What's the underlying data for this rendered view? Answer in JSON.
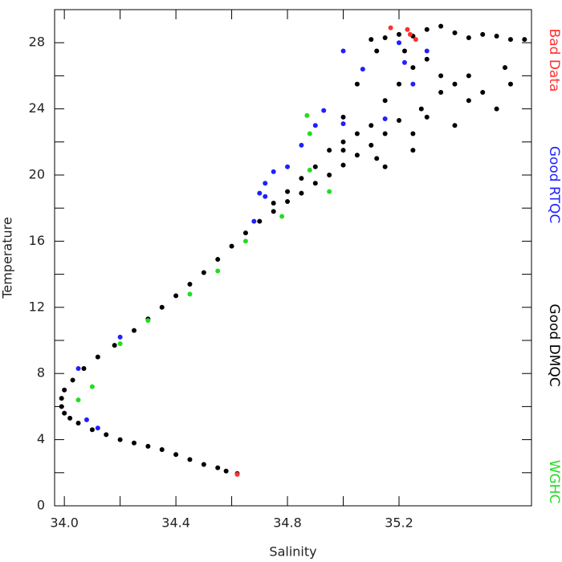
{
  "chart_data": {
    "type": "scatter",
    "x_label": "Salinity",
    "y_label": "Temperature",
    "xlim": [
      33.965,
      35.675
    ],
    "ylim": [
      0,
      30
    ],
    "xticks": [
      {
        "value": 34.0,
        "label": "34.0"
      },
      34.4,
      34.8,
      35.2
    ],
    "yticks": [
      0,
      4,
      8,
      12,
      16,
      20,
      24,
      28
    ],
    "series": [
      {
        "name": "Bad Data",
        "color": "#ff3030",
        "x": [
          35.17,
          35.23,
          35.24,
          35.26,
          34.62
        ],
        "y": [
          28.9,
          28.8,
          28.5,
          28.2,
          1.9
        ]
      },
      {
        "name": "Good RTQC",
        "color": "#2020ff",
        "x": [
          34.7,
          34.72,
          34.68,
          34.72,
          34.75,
          34.8,
          34.85,
          34.9,
          34.93,
          35.0,
          35.07,
          34.05,
          34.08,
          34.12,
          34.2,
          35.0,
          35.2,
          35.25,
          35.3,
          35.15,
          35.22
        ],
        "y": [
          18.9,
          18.7,
          17.2,
          19.5,
          20.2,
          20.5,
          21.8,
          23.0,
          23.9,
          23.1,
          26.4,
          8.3,
          5.2,
          4.7,
          10.2,
          27.5,
          28.0,
          25.5,
          27.5,
          23.4,
          26.8
        ]
      },
      {
        "name": "Good DMQC",
        "color": "#000000",
        "x": [
          34.62,
          34.58,
          34.55,
          34.5,
          34.45,
          34.4,
          34.35,
          34.3,
          34.25,
          34.2,
          34.15,
          34.1,
          34.05,
          34.02,
          34.0,
          33.99,
          33.99,
          34.0,
          34.03,
          34.07,
          34.12,
          34.18,
          34.25,
          34.3,
          34.35,
          34.4,
          34.45,
          34.5,
          34.55,
          34.6,
          34.65,
          34.7,
          34.75,
          34.8,
          34.85,
          34.9,
          34.95,
          35.0,
          35.05,
          35.1,
          35.15,
          35.2,
          34.9,
          35.0,
          35.05,
          35.1,
          35.15,
          35.2,
          35.25,
          35.3,
          35.35,
          35.4,
          35.45,
          35.5,
          35.55,
          35.1,
          35.15,
          35.2,
          35.25,
          35.3,
          35.35,
          35.4,
          35.45,
          35.5,
          35.55,
          35.6,
          35.65,
          35.0,
          35.12,
          35.25,
          35.3,
          35.4,
          35.6,
          35.58,
          35.45,
          35.35,
          35.28,
          35.22,
          35.12,
          35.05,
          35.0,
          34.95,
          34.85,
          34.8,
          34.75,
          35.15,
          35.25
        ],
        "y": [
          1.95,
          2.1,
          2.3,
          2.5,
          2.8,
          3.1,
          3.4,
          3.6,
          3.8,
          4.0,
          4.3,
          4.6,
          5.0,
          5.3,
          5.6,
          6.0,
          6.5,
          7.0,
          7.6,
          8.3,
          9.0,
          9.7,
          10.6,
          11.3,
          12.0,
          12.7,
          13.4,
          14.1,
          14.9,
          15.7,
          16.5,
          17.2,
          17.8,
          18.4,
          18.9,
          19.5,
          20.0,
          20.6,
          21.2,
          21.8,
          22.5,
          23.3,
          20.5,
          21.5,
          22.5,
          23.0,
          24.5,
          25.5,
          26.5,
          27.0,
          26.0,
          25.5,
          24.5,
          25.0,
          24.0,
          28.2,
          28.3,
          28.5,
          28.4,
          28.8,
          29.0,
          28.6,
          28.3,
          28.5,
          28.4,
          28.2,
          28.2,
          22.0,
          21.0,
          22.5,
          23.5,
          23.0,
          25.5,
          26.5,
          26.0,
          25.0,
          24.0,
          27.5,
          27.5,
          25.5,
          23.5,
          21.5,
          19.8,
          19.0,
          18.3,
          20.5,
          21.5
        ]
      },
      {
        "name": "WGHC",
        "color": "#22dd22",
        "x": [
          34.87,
          34.88,
          34.88,
          34.1,
          34.05,
          34.2,
          34.3,
          34.45,
          34.55,
          34.65,
          34.78,
          34.95
        ],
        "y": [
          23.6,
          22.5,
          20.3,
          7.2,
          6.4,
          9.8,
          11.2,
          12.8,
          14.2,
          16.0,
          17.5,
          19.0
        ]
      }
    ]
  }
}
